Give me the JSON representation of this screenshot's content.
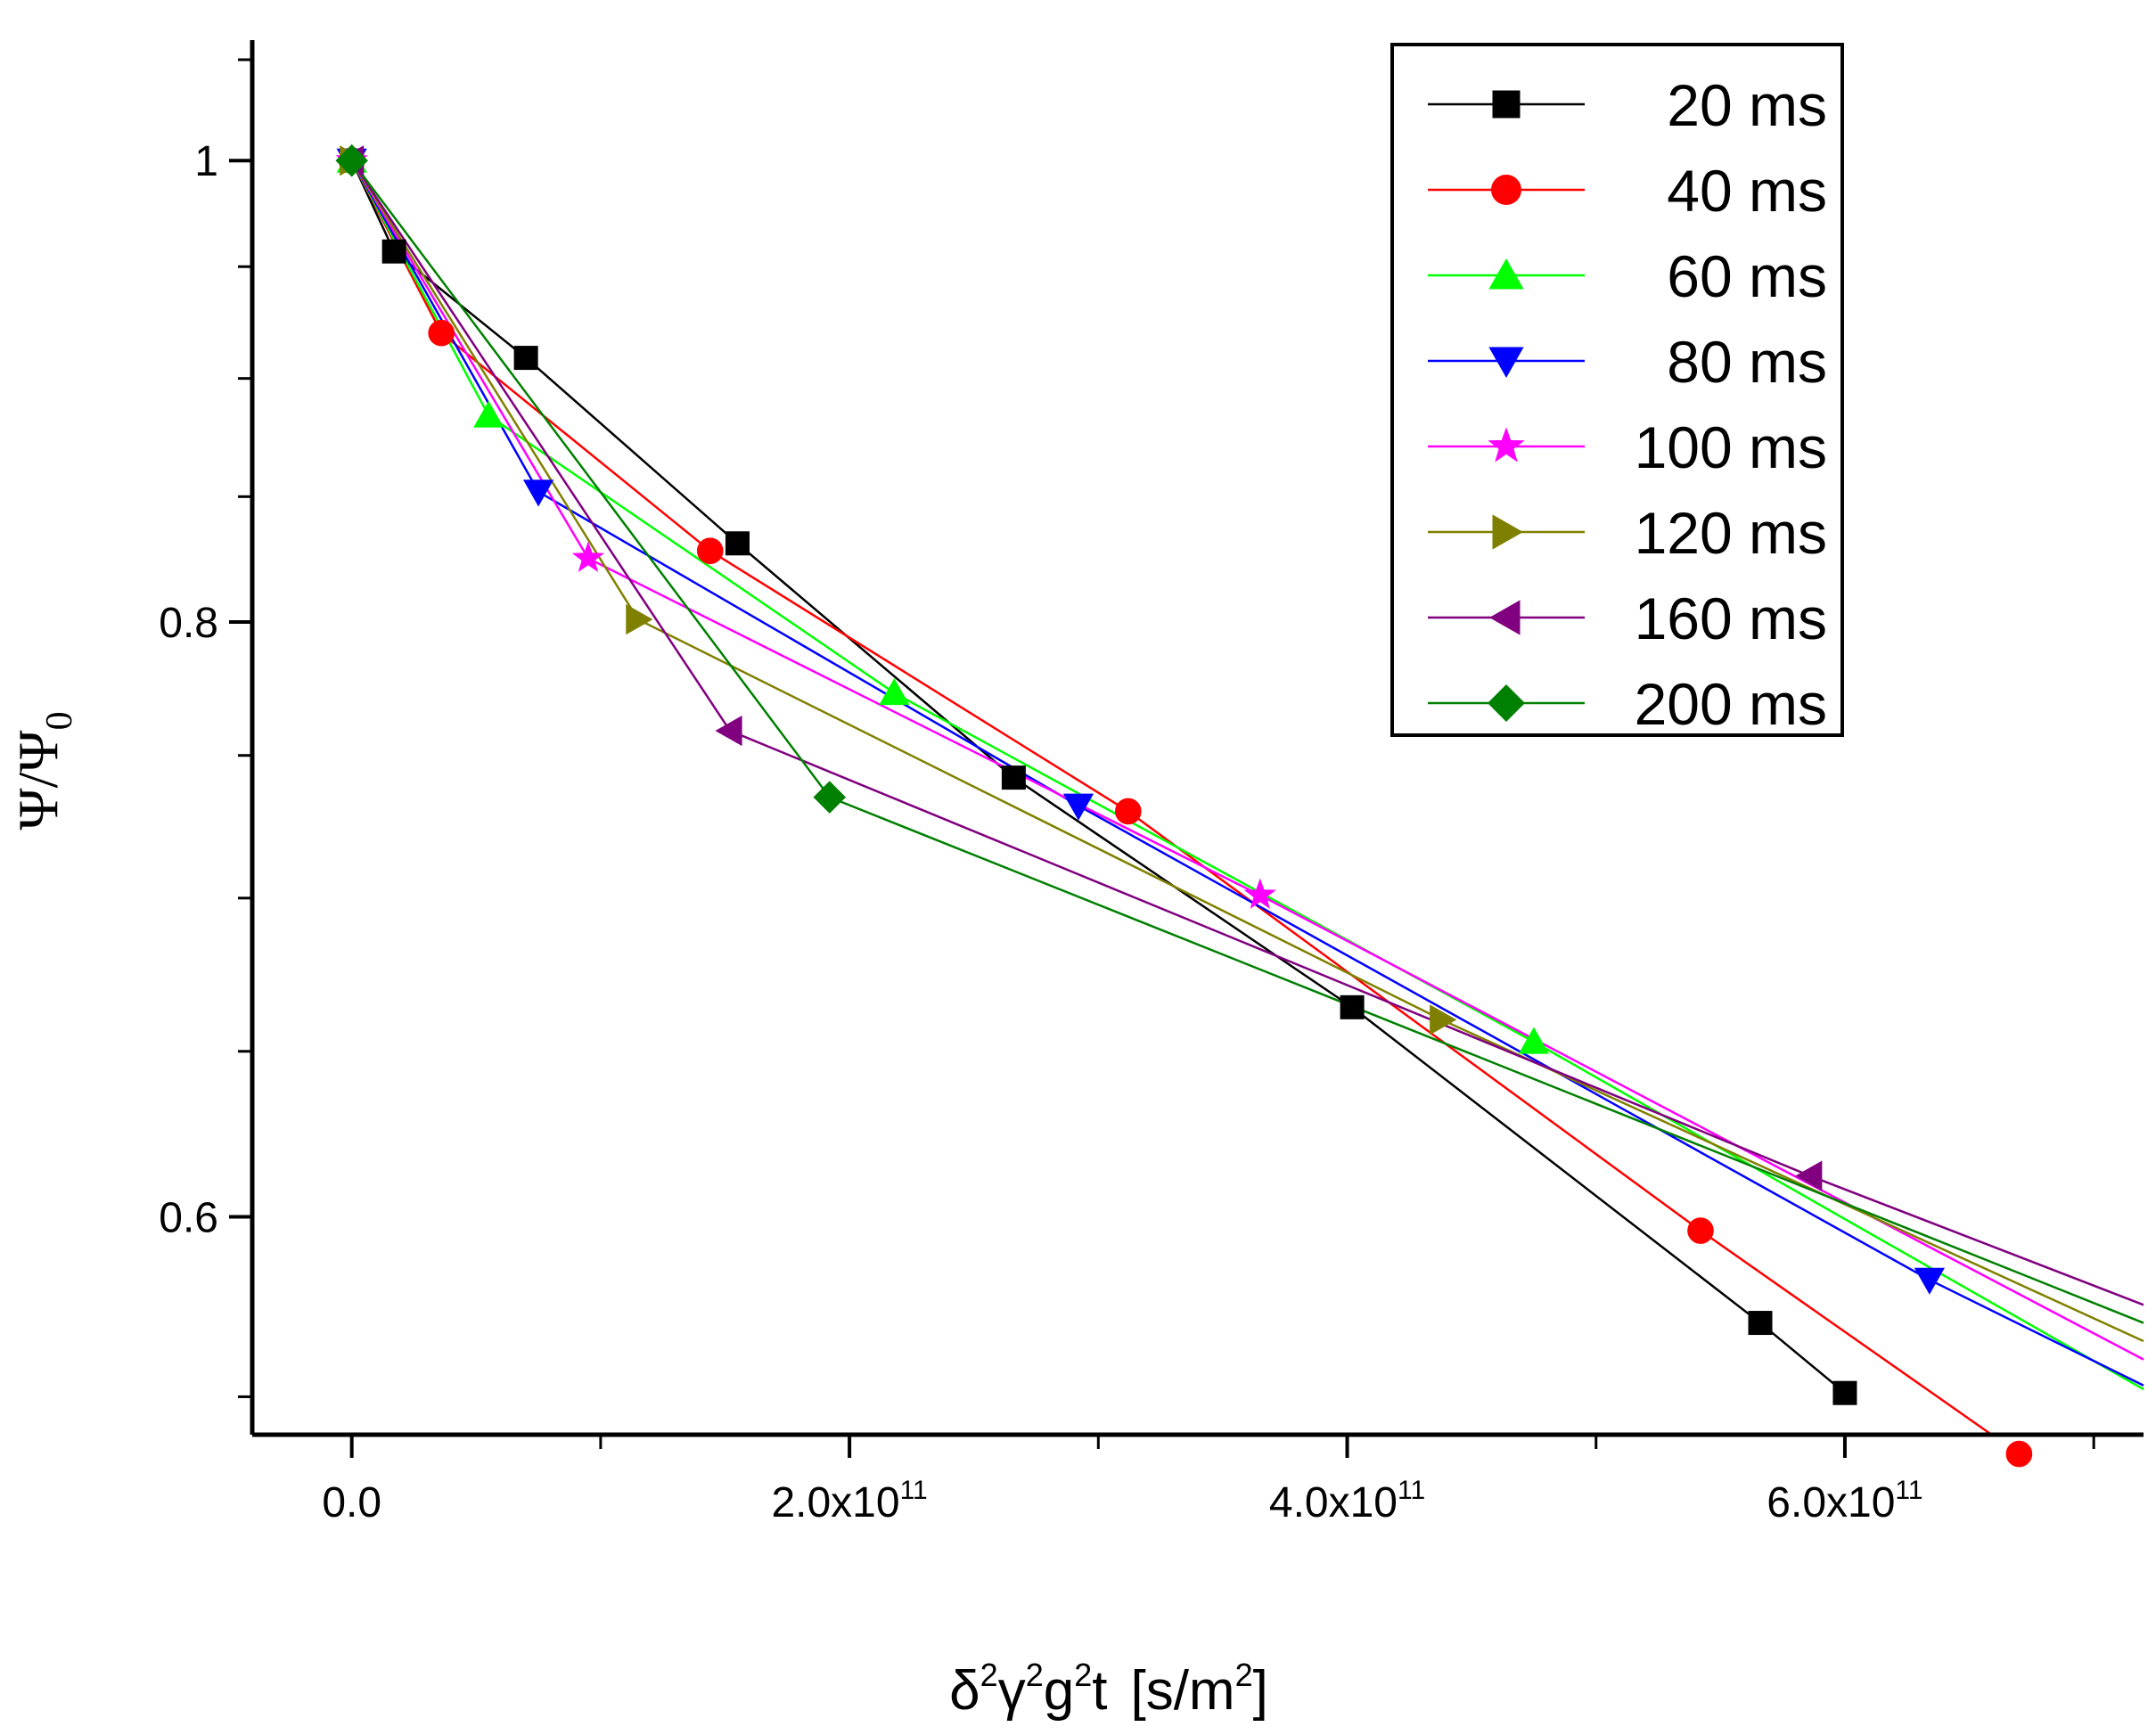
{
  "chart_data": {
    "type": "line",
    "title": "",
    "xlabel": {
      "text": "δ²γ²g²t  [s/m²]",
      "delta": "δ",
      "gamma": "γ",
      "g": "g",
      "t": "t",
      "unit_open": "[s/m",
      "unit_close": "]",
      "sup": "2"
    },
    "ylabel": {
      "text": "Ψ/Ψ0",
      "base": "Ψ/Ψ",
      "sub": "0"
    },
    "log_y": true,
    "xlim": [
      -40000000000.0,
      720000000000.0
    ],
    "ylim": [
      0.54,
      1.06
    ],
    "x_ticks": [
      {
        "value": 0,
        "mantissa": "0.0",
        "exp": ""
      },
      {
        "value": 200000000000.0,
        "mantissa": "2.0x10",
        "exp": "11"
      },
      {
        "value": 400000000000.0,
        "mantissa": "4.0x10",
        "exp": "11"
      },
      {
        "value": 600000000000.0,
        "mantissa": "6.0x10",
        "exp": "11"
      }
    ],
    "x_minor_ticks": [
      100000000000.0,
      300000000000.0,
      500000000000.0,
      700000000000.0
    ],
    "y_ticks": [
      {
        "value": 1.0,
        "label": "1"
      },
      {
        "value": 0.8,
        "label": "0.8"
      },
      {
        "value": 0.6,
        "label": "0.6"
      }
    ],
    "y_minor_ticks": [
      0.55,
      0.65,
      0.7,
      0.75,
      0.85,
      0.9,
      0.95,
      1.05
    ],
    "grid": false,
    "legend_position": "top-right",
    "series": [
      {
        "name": "20 ms",
        "color": "#000000",
        "marker": "square",
        "x": [
          0,
          17000000000.0,
          70000000000.0,
          155000000000.0,
          266000000000.0,
          402000000000.0,
          566000000000.0,
          600000000000.0
        ],
        "y": [
          1.0,
          0.957,
          0.909,
          0.831,
          0.742,
          0.664,
          0.57,
          0.551
        ]
      },
      {
        "name": "40 ms",
        "color": "#ff0000",
        "marker": "circle",
        "x": [
          0,
          36000000000.0,
          144000000000.0,
          312000000000.0,
          542000000000.0,
          670000000000.0
        ],
        "y": [
          1.0,
          0.92,
          0.828,
          0.73,
          0.596,
          0.535
        ]
      },
      {
        "name": "60 ms",
        "color": "#00ff00",
        "marker": "triangle-up",
        "x": [
          0,
          55000000000.0,
          218000000000.0,
          475000000000.0,
          720000000000.0
        ],
        "y": [
          1.0,
          0.884,
          0.773,
          0.653,
          0.552
        ]
      },
      {
        "name": "80 ms",
        "color": "#0000ff",
        "marker": "triangle-down",
        "x": [
          0,
          75000000000.0,
          292000000000.0,
          634000000000.0,
          720000000000.0
        ],
        "y": [
          1.0,
          0.852,
          0.732,
          0.582,
          0.553
        ]
      },
      {
        "name": "100 ms",
        "color": "#ff00ff",
        "marker": "star",
        "x": [
          0,
          95000000000.0,
          365000000000.0,
          720000000000.0
        ],
        "y": [
          1.0,
          0.825,
          0.701,
          0.56
        ]
      },
      {
        "name": "120 ms",
        "color": "#808000",
        "marker": "triangle-right",
        "x": [
          0,
          115000000000.0,
          438000000000.0,
          720000000000.0
        ],
        "y": [
          1.0,
          0.801,
          0.66,
          0.565
        ]
      },
      {
        "name": "160 ms",
        "color": "#800080",
        "marker": "triangle-left",
        "x": [
          0,
          152000000000.0,
          586000000000.0,
          720000000000.0
        ],
        "y": [
          1.0,
          0.759,
          0.612,
          0.575
        ]
      },
      {
        "name": "200 ms",
        "color": "#008000",
        "marker": "diamond",
        "x": [
          0,
          192000000000.0,
          720000000000.0
        ],
        "y": [
          1.0,
          0.735,
          0.57
        ]
      }
    ]
  }
}
